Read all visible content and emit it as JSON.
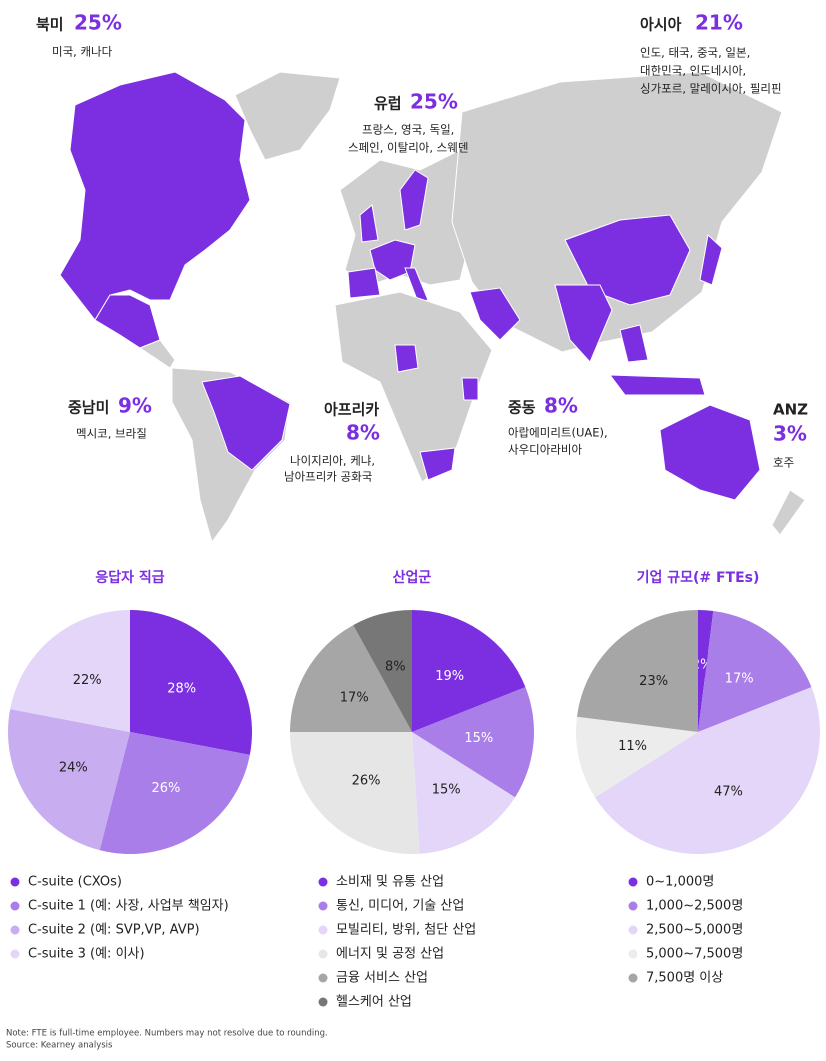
{
  "map": {
    "regions": [
      {
        "name": "북미",
        "share": "25%",
        "countries": [
          "미국, 캐나다"
        ]
      },
      {
        "name": "아시아",
        "share": "21%",
        "countries": [
          "인도, 태국, 중국, 일본,",
          "대한민국, 인도네시아,",
          "싱가포르, 말레이시아, 필리핀"
        ]
      },
      {
        "name": "유럽",
        "share": "25%",
        "countries": [
          "프랑스, 영국, 독일,",
          "스페인, 이탈리아, 스웨덴"
        ]
      },
      {
        "name": "중남미",
        "share": "9%",
        "countries": [
          "멕시코, 브라질"
        ]
      },
      {
        "name": "아프리카",
        "share": "8%",
        "countries": [
          "나이지리아, 케냐,",
          "남아프리카 공화국"
        ]
      },
      {
        "name": "중동",
        "share": "8%",
        "countries": [
          "아랍에미리트(UAE),",
          "사우디아라비아"
        ]
      },
      {
        "name": "ANZ",
        "share": "3%",
        "countries": [
          "호주"
        ]
      }
    ]
  },
  "chart_data": [
    {
      "type": "pie",
      "title": "응답자 직급",
      "categories": [
        "C-suite (CXOs)",
        "C-suite 1 (예: 사장, 사업부 책임자)",
        "C-suite 2 (예: SVP,VP, AVP)",
        "C-suite 3 (예: 이사)"
      ],
      "values": [
        28,
        26,
        24,
        22
      ],
      "value_labels": [
        "28%",
        "26%",
        "24%",
        "22%"
      ],
      "colors": [
        "#7b2fe0",
        "#a97ee9",
        "#c8adf1",
        "#e4d6f8"
      ]
    },
    {
      "type": "pie",
      "title": "산업군",
      "categories": [
        "소비재 및 유통 산업",
        "통신, 미디어, 기술 산업",
        "모빌리티, 방위, 첨단 산업",
        "에너지 및 공정 산업",
        "금융 서비스 산업",
        "헬스케어 산업"
      ],
      "values": [
        19,
        15,
        15,
        26,
        17,
        8
      ],
      "value_labels": [
        "19%",
        "15%",
        "15%",
        "26%",
        "17%",
        "8%"
      ],
      "colors": [
        "#7b2fe0",
        "#a97ee9",
        "#e4d6f8",
        "#e6e6e6",
        "#a6a6a6",
        "#777777"
      ]
    },
    {
      "type": "pie",
      "title": "기업 규모(# FTEs)",
      "categories": [
        "0~1,000명",
        "1,000~2,500명",
        "2,500~5,000명",
        "5,000~7,500명",
        "7,500명 이상"
      ],
      "values": [
        2,
        17,
        47,
        11,
        23
      ],
      "value_labels": [
        "2%",
        "17%",
        "47%",
        "11%",
        "23%"
      ],
      "colors": [
        "#7b2fe0",
        "#a97ee9",
        "#e4d6f8",
        "#ececec",
        "#a6a6a6"
      ]
    }
  ],
  "footnote": [
    "Note: FTE is full-time employee. Numbers may not resolve due to rounding.",
    "Source: Kearney analysis"
  ]
}
